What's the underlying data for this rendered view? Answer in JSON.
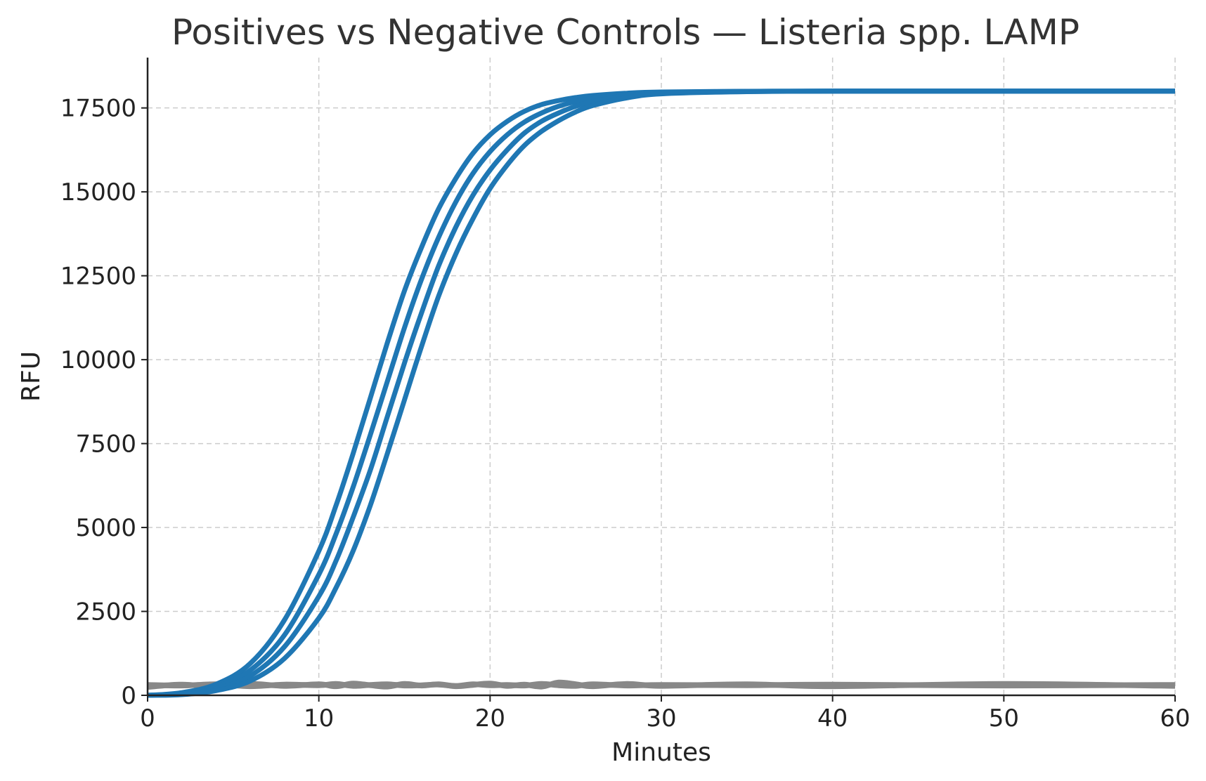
{
  "chart_data": {
    "type": "line",
    "title": "Positives vs Negative Controls — Listeria spp. LAMP",
    "xlabel": "Minutes",
    "ylabel": "RFU",
    "xlim": [
      0,
      60
    ],
    "ylim": [
      0,
      19000
    ],
    "xticks": [
      0,
      10,
      20,
      30,
      40,
      50,
      60
    ],
    "yticks": [
      0,
      2500,
      5000,
      7500,
      10000,
      12500,
      15000,
      17500
    ],
    "grid": true,
    "legend": "none",
    "x": [
      0,
      2,
      4,
      6,
      8,
      10,
      11,
      12,
      13,
      14,
      15,
      16,
      17,
      18,
      19,
      20,
      21,
      22,
      23,
      24,
      25,
      26,
      28,
      30,
      35,
      40,
      50,
      60
    ],
    "series": [
      {
        "color": "#1f77b4",
        "values": [
          0,
          80,
          330,
          950,
          2250,
          4300,
          5650,
          7200,
          8850,
          10500,
          12050,
          13350,
          14500,
          15400,
          16150,
          16700,
          17100,
          17400,
          17600,
          17720,
          17810,
          17870,
          17940,
          17975,
          17995,
          18000,
          18000,
          18000
        ]
      },
      {
        "color": "#1f77b4",
        "values": [
          0,
          60,
          250,
          750,
          1800,
          3600,
          4800,
          6200,
          7750,
          9350,
          10950,
          12400,
          13650,
          14700,
          15550,
          16200,
          16700,
          17080,
          17350,
          17550,
          17690,
          17780,
          17900,
          17960,
          17993,
          18000,
          18000,
          18000
        ]
      },
      {
        "color": "#1f77b4",
        "values": [
          0,
          40,
          190,
          580,
          1450,
          2950,
          4000,
          5300,
          6700,
          8300,
          9900,
          11400,
          12800,
          13950,
          14900,
          15650,
          16250,
          16750,
          17100,
          17350,
          17550,
          17690,
          17860,
          17940,
          17990,
          18000,
          18000,
          18000
        ]
      },
      {
        "color": "#1f77b4",
        "values": [
          0,
          20,
          140,
          430,
          1100,
          2300,
          3200,
          4300,
          5650,
          7200,
          8800,
          10400,
          11900,
          13150,
          14200,
          15100,
          15800,
          16380,
          16800,
          17120,
          17380,
          17570,
          17800,
          17920,
          17985,
          18000,
          18000,
          18000
        ]
      },
      {
        "color": "#888888",
        "values": [
          310,
          290,
          330,
          270,
          320,
          300,
          340,
          280,
          310,
          330,
          290,
          300,
          320,
          280,
          330,
          300,
          310,
          290,
          340,
          300,
          280,
          330,
          290,
          310,
          300,
          320,
          290,
          310
        ]
      },
      {
        "color": "#888888",
        "values": [
          250,
          320,
          260,
          340,
          280,
          330,
          270,
          350,
          300,
          260,
          340,
          290,
          330,
          270,
          310,
          350,
          280,
          320,
          260,
          380,
          330,
          270,
          340,
          280,
          330,
          270,
          340,
          280
        ]
      }
    ]
  }
}
